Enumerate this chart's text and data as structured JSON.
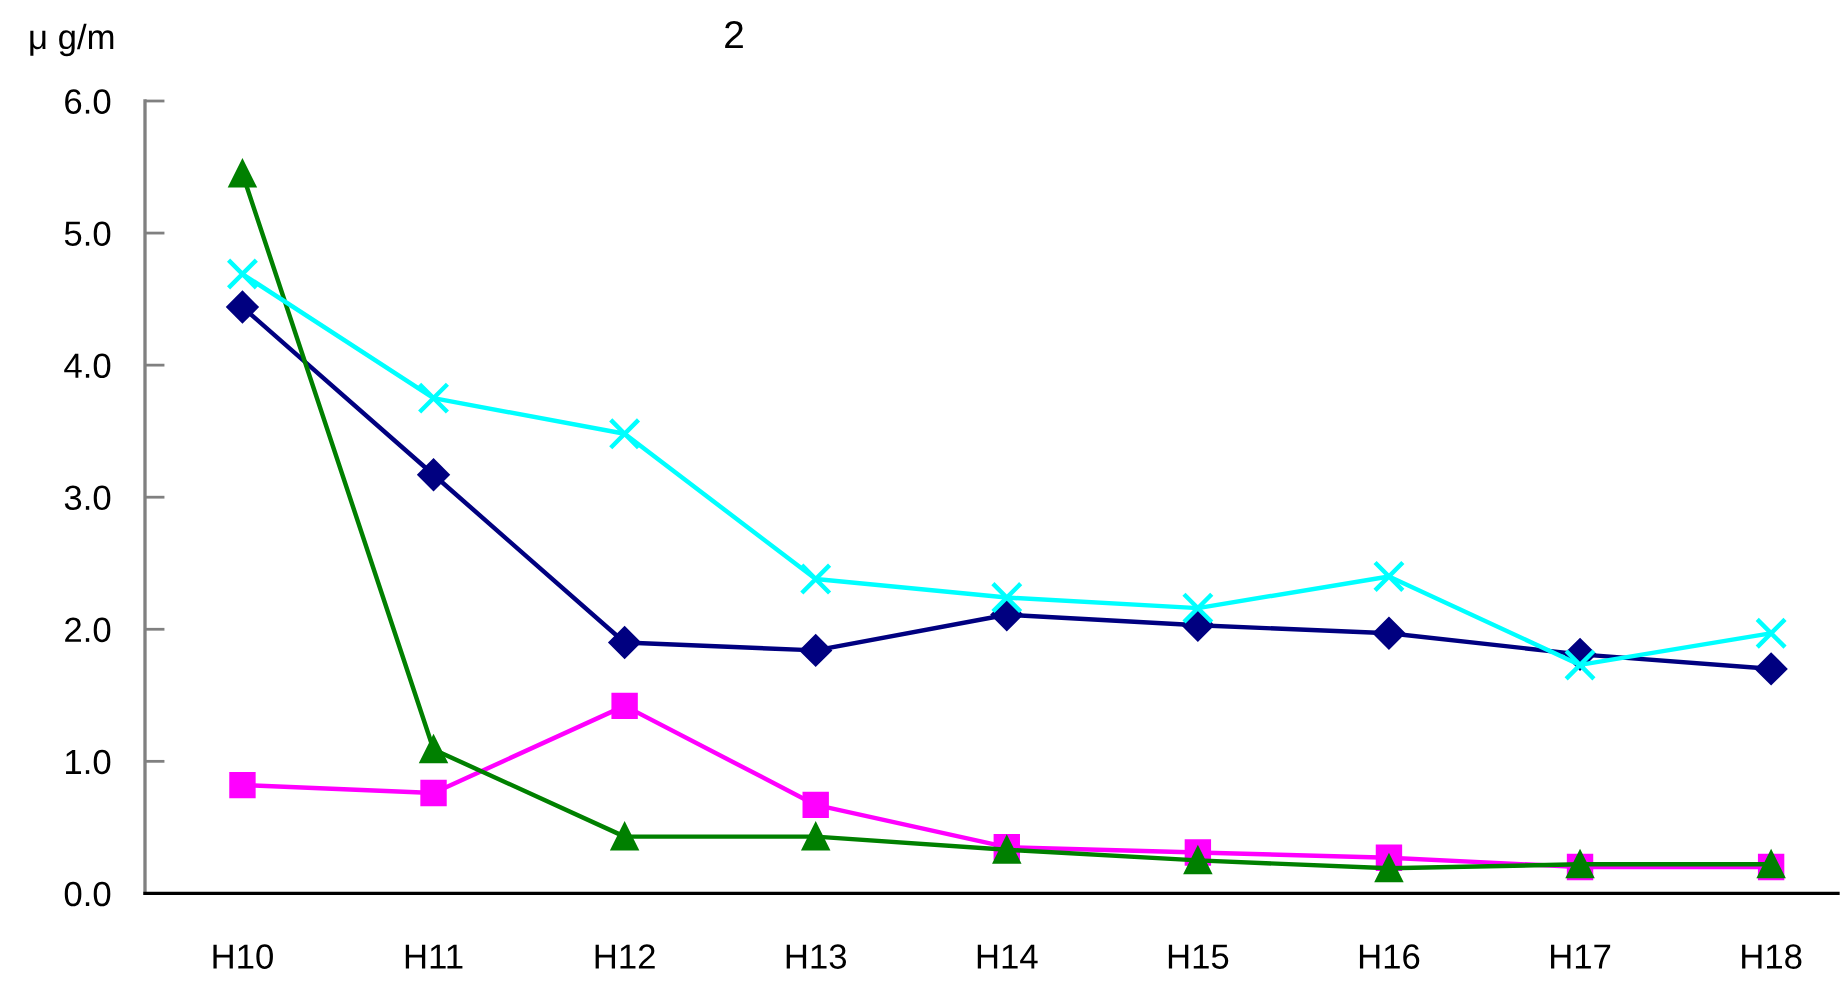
{
  "chart_data": {
    "type": "line",
    "ylabel": "μ g/m",
    "annotations": [
      "2"
    ],
    "categories": [
      "H10",
      "H11",
      "H12",
      "H13",
      "H14",
      "H15",
      "H16",
      "H17",
      "H18"
    ],
    "series": [
      {
        "color": "#000080",
        "marker": "diamond",
        "values": [
          4.44,
          3.17,
          1.9,
          1.84,
          2.11,
          2.03,
          1.97,
          1.81,
          1.7
        ]
      },
      {
        "color": "#ff00ff",
        "marker": "square",
        "values": [
          0.82,
          0.76,
          1.42,
          0.67,
          0.35,
          0.31,
          0.27,
          0.2,
          0.2
        ]
      },
      {
        "color": "#008000",
        "marker": "triangle",
        "values": [
          5.45,
          1.09,
          0.43,
          0.43,
          0.33,
          0.25,
          0.19,
          0.22,
          0.22
        ]
      },
      {
        "color": "#00ffff",
        "marker": "cross",
        "values": [
          4.69,
          3.75,
          3.48,
          2.38,
          2.24,
          2.16,
          2.4,
          1.73,
          1.97
        ]
      }
    ],
    "ylim": [
      0,
      6
    ],
    "yticks": [
      {
        "value": 0,
        "label": "0.0"
      },
      {
        "value": 1,
        "label": "1.0"
      },
      {
        "value": 2,
        "label": "2.0"
      },
      {
        "value": 3,
        "label": "3.0"
      },
      {
        "value": 4,
        "label": "4.0"
      },
      {
        "value": 5,
        "label": "5.0"
      },
      {
        "value": 6,
        "label": "6.0"
      }
    ],
    "grid": false,
    "line_style": "solid"
  }
}
